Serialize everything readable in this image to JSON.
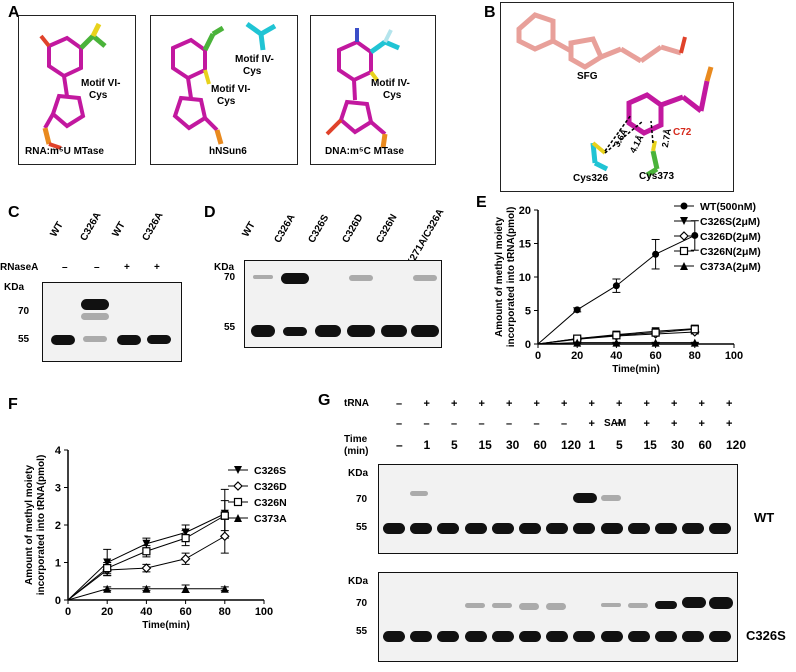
{
  "panels": {
    "A": {
      "letter": "A",
      "boxes": [
        {
          "labels": [
            "Motif VI-",
            "Cys"
          ],
          "caption": "RNA:m⁵U MTase"
        },
        {
          "labels": [
            "Motif IV-",
            "Cys",
            "Motif VI-",
            "Cys"
          ],
          "caption": "hNSun6"
        },
        {
          "labels": [
            "Motif IV-",
            "Cys"
          ],
          "caption": "DNA:m⁵C MTase"
        }
      ]
    },
    "B": {
      "letter": "B",
      "sfg": "SFG",
      "c72": "C72",
      "cys326": "Cys326",
      "cys373": "Cys373",
      "distances": [
        "3.6Å",
        "4.1Å",
        "2.7Å"
      ]
    },
    "C": {
      "letter": "C",
      "lanes": [
        "WT",
        "C326A",
        "WT",
        "C326A"
      ],
      "rnase_label": "RNaseA",
      "rnase_signs": [
        "–",
        "–",
        "+",
        "+"
      ],
      "kda": "KDa",
      "markers": [
        "70",
        "55"
      ]
    },
    "D": {
      "letter": "D",
      "lanes": [
        "WT",
        "C326A",
        "C326S",
        "C326D",
        "C326N",
        "K271A/C326A"
      ],
      "kda": "KDa",
      "markers": [
        "70",
        "55"
      ]
    },
    "E": {
      "letter": "E"
    },
    "F": {
      "letter": "F"
    },
    "G": {
      "letter": "G",
      "row_trna": "tRNA",
      "row_sam": "SAM",
      "row_time": "Time",
      "row_time2": "(min)",
      "trna_signs": [
        "–",
        "+",
        "+",
        "+",
        "+",
        "+",
        "+",
        "+",
        "+",
        "+",
        "+",
        "+",
        "+"
      ],
      "sam_signs": [
        "–",
        "–",
        "–",
        "–",
        "–",
        "–",
        "–",
        "+",
        "+",
        "+",
        "+",
        "+",
        "+"
      ],
      "times": [
        "–",
        "1",
        "5",
        "15",
        "30",
        "60",
        "120",
        "1",
        "5",
        "15",
        "30",
        "60",
        "120"
      ],
      "kda": "KDa",
      "markers": [
        "70",
        "55"
      ],
      "wt_label": "WT",
      "mut_label": "C326S"
    }
  },
  "chart_data": [
    {
      "type": "line",
      "panel": "E",
      "xlabel": "Time(min)",
      "ylabel": "Amount of methyl moiety incorporated into tRNA(pmol)",
      "xlim": [
        0,
        100
      ],
      "ylim": [
        0,
        20
      ],
      "xticks": [
        0,
        20,
        40,
        60,
        80,
        100
      ],
      "yticks": [
        0,
        5,
        10,
        15,
        20
      ],
      "legend_position": "top-right",
      "series": [
        {
          "name": "WT(500nM)",
          "marker": "circle",
          "x": [
            20,
            40,
            60,
            80
          ],
          "y": [
            5.1,
            8.7,
            13.4,
            16.2
          ],
          "err": [
            0.3,
            1.0,
            2.2,
            2.2
          ]
        },
        {
          "name": "C326S(2μM)",
          "marker": "triangle-down",
          "x": [
            20,
            40,
            60,
            80
          ],
          "y": [
            0.8,
            1.4,
            1.9,
            2.3
          ],
          "err": [
            0.3,
            0.2,
            0.3,
            0.4
          ]
        },
        {
          "name": "C326D(2μM)",
          "marker": "diamond-open",
          "x": [
            20,
            40,
            60,
            80
          ],
          "y": [
            0.7,
            1.2,
            1.5,
            1.8
          ],
          "err": [
            0.2,
            0.2,
            0.3,
            0.3
          ]
        },
        {
          "name": "C326N(2μM)",
          "marker": "square-open",
          "x": [
            20,
            40,
            60,
            80
          ],
          "y": [
            0.8,
            1.3,
            1.7,
            2.2
          ],
          "err": [
            0.2,
            0.2,
            0.3,
            0.4
          ]
        },
        {
          "name": "C373A(2μM)",
          "marker": "triangle-up",
          "x": [
            20,
            40,
            60,
            80
          ],
          "y": [
            0.2,
            0.2,
            0.2,
            0.2
          ],
          "err": [
            0.05,
            0.05,
            0.05,
            0.05
          ]
        }
      ]
    },
    {
      "type": "line",
      "panel": "F",
      "xlabel": "Time(min)",
      "ylabel": "Amount of methyl moiety incorporated into tRNA(pmol)",
      "xlim": [
        0,
        100
      ],
      "ylim": [
        0,
        4
      ],
      "xticks": [
        0,
        20,
        40,
        60,
        80,
        100
      ],
      "yticks": [
        0,
        1,
        2,
        3,
        4
      ],
      "legend_position": "right",
      "series": [
        {
          "name": "C326S",
          "marker": "triangle-down",
          "x": [
            20,
            40,
            60,
            80
          ],
          "y": [
            1.0,
            1.5,
            1.8,
            2.3
          ],
          "err": [
            0.35,
            0.15,
            0.2,
            0.65
          ]
        },
        {
          "name": "C326D",
          "marker": "diamond-open",
          "x": [
            20,
            40,
            60,
            80
          ],
          "y": [
            0.8,
            0.85,
            1.1,
            1.7
          ],
          "err": [
            0.15,
            0.1,
            0.15,
            0.45
          ]
        },
        {
          "name": "C326N",
          "marker": "square-open",
          "x": [
            20,
            40,
            60,
            80
          ],
          "y": [
            0.85,
            1.3,
            1.65,
            2.25
          ],
          "err": [
            0.15,
            0.15,
            0.2,
            0.4
          ]
        },
        {
          "name": "C373A",
          "marker": "triangle-up",
          "x": [
            20,
            40,
            60,
            80
          ],
          "y": [
            0.3,
            0.3,
            0.3,
            0.3
          ],
          "err": [
            0.05,
            0.05,
            0.1,
            0.05
          ]
        }
      ]
    }
  ]
}
